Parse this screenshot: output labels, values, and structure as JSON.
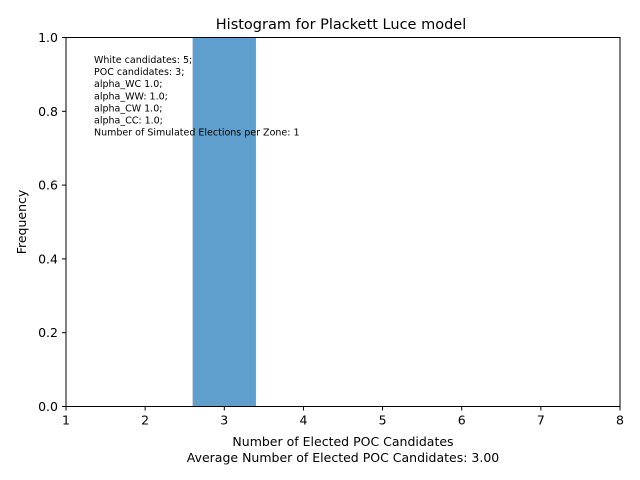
{
  "chart_data": {
    "type": "bar",
    "title": "Histogram for Plackett Luce model",
    "xlabel": "Number of Elected POC Candidates",
    "xlabel_sub": "Average Number of Elected POC Candidates: 3.00",
    "ylabel": "Frequency",
    "xlim": [
      1,
      8
    ],
    "ylim": [
      0,
      1
    ],
    "xticks": [
      "1",
      "2",
      "3",
      "4",
      "5",
      "6",
      "7",
      "8"
    ],
    "xtick_values": [
      1,
      2,
      3,
      4,
      5,
      6,
      7,
      8
    ],
    "yticks": [
      "0.0",
      "0.2",
      "0.4",
      "0.6",
      "0.8",
      "1.0"
    ],
    "ytick_values": [
      0,
      0.2,
      0.4,
      0.6,
      0.8,
      1.0
    ],
    "bars": [
      {
        "x_start": 2.6,
        "x_end": 3.4,
        "value": 1.0
      }
    ],
    "bar_color": "#5f9fcd",
    "annotation": [
      "White candidates: 5;",
      "POC candidates: 3;",
      "alpha_WC 1.0;",
      "alpha_WW: 1.0;",
      "alpha_CW 1.0;",
      "alpha_CC: 1.0;",
      "Number of Simulated Elections per Zone: 1"
    ],
    "grid": false,
    "legend": "none"
  }
}
